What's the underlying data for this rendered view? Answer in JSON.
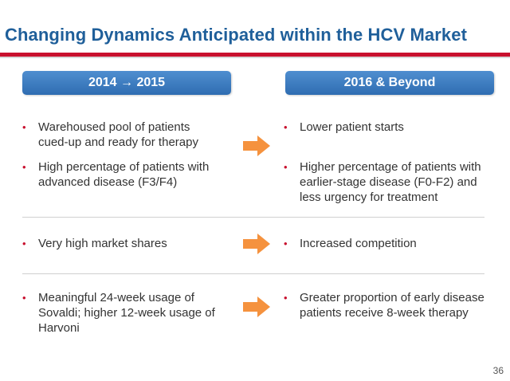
{
  "title": "Changing Dynamics Anticipated within the HCV Market",
  "columns": {
    "left_header": "2014 → 2015",
    "right_header": "2016 & Beyond"
  },
  "rows": [
    {
      "left": [
        "Warehoused pool of patients cued-up and ready for therapy",
        "High percentage of patients with advanced disease (F3/F4)"
      ],
      "right": [
        "Lower patient starts",
        "Higher percentage of patients with earlier-stage disease (F0-F2) and less urgency for treatment"
      ]
    },
    {
      "left": [
        "Very high market shares"
      ],
      "right": [
        "Increased competition"
      ]
    },
    {
      "left": [
        "Meaningful 24-week usage of Sovaldi; higher 12-week usage of Harvoni"
      ],
      "right": [
        "Greater proportion of early disease patients receive 8-week therapy"
      ]
    }
  ],
  "bullet_symbol": "•",
  "page_number": "36",
  "colors": {
    "title": "#1f5f9a",
    "accent": "#c8102e",
    "header": "#3a78be",
    "arrow": "#f5923e"
  }
}
